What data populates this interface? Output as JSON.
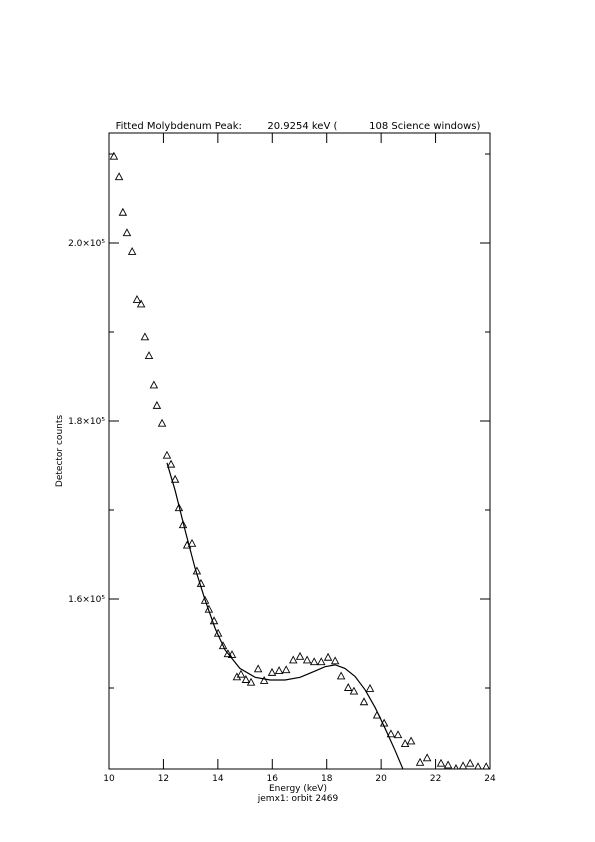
{
  "chart_data": {
    "type": "scatter",
    "title": "Fitted Molybdenum Peak:        20.9254 keV (          108 Science windows)",
    "x_label": "Energy (keV)",
    "subtitle": "jemx1: orbit 2469",
    "y_label": "Detector counts",
    "xlim": [
      10,
      24
    ],
    "xticks": [
      10,
      12,
      14,
      16,
      18,
      20,
      22,
      24
    ],
    "ylim": [
      140900,
      212360
    ],
    "yticks": [
      {
        "value": 160000,
        "label": "1.6×10⁵"
      },
      {
        "value": 180000,
        "label": "1.8×10⁵"
      },
      {
        "value": 200000,
        "label": "2.0×10⁵"
      }
    ],
    "yminorticks": [
      150000,
      170000,
      190000,
      210000
    ],
    "color": "#000000",
    "series": [
      {
        "style": "triangles",
        "x": [
          10.18,
          10.37,
          10.51,
          10.66,
          10.85,
          11.03,
          11.18,
          11.32,
          11.47,
          11.65,
          11.76,
          11.95,
          12.13,
          12.28,
          12.43,
          12.57,
          12.72,
          12.87,
          13.05,
          13.23,
          13.38,
          13.53,
          13.67,
          13.86,
          14.01,
          14.19,
          14.37,
          14.52,
          14.7,
          14.85,
          15.03,
          15.22,
          15.48,
          15.7,
          15.99,
          16.25,
          16.51,
          16.77,
          17.02,
          17.28,
          17.54,
          17.8,
          18.05,
          18.31,
          18.53,
          18.79,
          19.0,
          19.37,
          19.59,
          19.85,
          20.11,
          20.36,
          20.62,
          20.88,
          21.1,
          21.43,
          21.69,
          22.2,
          22.46,
          22.75,
          23.01,
          23.27,
          23.56,
          23.86
        ],
        "values": [
          209700,
          207400,
          203400,
          201100,
          199000,
          193600,
          193100,
          189400,
          187300,
          184000,
          181700,
          179700,
          176100,
          175100,
          173400,
          170200,
          168300,
          166000,
          166200,
          163100,
          161700,
          159800,
          158800,
          157500,
          156100,
          154700,
          153800,
          153700,
          151200,
          151500,
          150900,
          150600,
          152100,
          150800,
          151700,
          151900,
          152000,
          153100,
          153500,
          153100,
          152900,
          152900,
          153400,
          153000,
          151300,
          150000,
          149600,
          148400,
          149900,
          146900,
          146000,
          144800,
          144700,
          143700,
          144000,
          141600,
          142100,
          141500,
          141300,
          140900,
          141200,
          141500,
          141100,
          141100
        ]
      },
      {
        "style": "line",
        "x": [
          12.13,
          12.43,
          12.79,
          13.16,
          13.53,
          13.9,
          14.26,
          14.81,
          15.37,
          15.92,
          16.47,
          17.02,
          17.57,
          17.94,
          18.31,
          18.67,
          19.04,
          19.41,
          19.78,
          20.14,
          20.51,
          20.8
        ],
        "values": [
          175300,
          172200,
          167800,
          163500,
          159900,
          156700,
          154300,
          152200,
          151200,
          150900,
          150900,
          151200,
          151900,
          152400,
          152600,
          152200,
          151300,
          149800,
          147800,
          145500,
          143000,
          140900
        ]
      }
    ]
  }
}
